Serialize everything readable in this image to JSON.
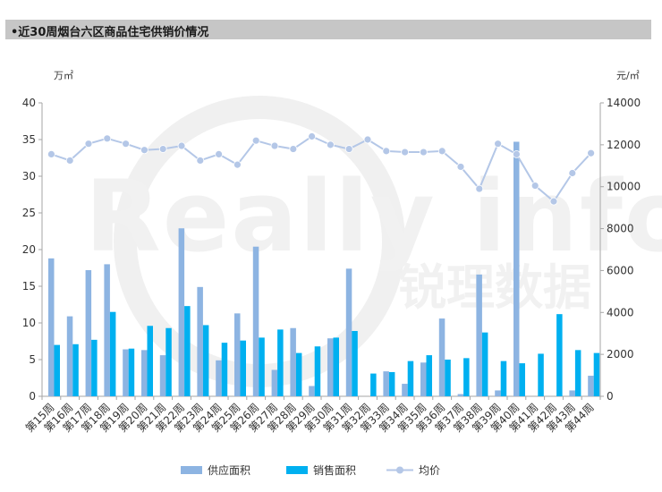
{
  "title": "•近30周烟台六区商品住宅供销价情况",
  "watermark": {
    "text_en": "Really info",
    "text_cn": "锐理数据"
  },
  "colors": {
    "supply": "#8db4e2",
    "sales": "#00b0f0",
    "price_line": "#b4c7e7",
    "price_marker": "#b4c7e7",
    "axis": "#a6a6a6"
  },
  "chart_data": {
    "type": "bar",
    "title": "近30周烟台六区商品住宅供销价情况",
    "categories": [
      "第15周",
      "第16周",
      "第17周",
      "第18周",
      "第19周",
      "第20周",
      "第21周",
      "第22周",
      "第23周",
      "第24周",
      "第25周",
      "第26周",
      "第27周",
      "第28周",
      "第29周",
      "第30周",
      "第31周",
      "第32周",
      "第33周",
      "第34周",
      "第35周",
      "第36周",
      "第37周",
      "第38周",
      "第39周",
      "第40周",
      "第41周",
      "第42周",
      "第43周",
      "第44周"
    ],
    "series": [
      {
        "name": "供应面积",
        "type": "bar",
        "axis": "left",
        "values": [
          18.8,
          10.9,
          17.2,
          18.0,
          6.4,
          6.3,
          5.6,
          22.9,
          14.9,
          4.9,
          11.3,
          20.4,
          3.6,
          9.3,
          1.4,
          7.9,
          17.4,
          0,
          3.4,
          1.7,
          4.6,
          10.6,
          0.3,
          16.6,
          0.8,
          34.7,
          0,
          0,
          0.8,
          2.8
        ]
      },
      {
        "name": "销售面积",
        "type": "bar",
        "axis": "left",
        "values": [
          7.0,
          7.1,
          7.7,
          11.5,
          6.5,
          9.6,
          9.3,
          12.3,
          9.7,
          7.3,
          7.6,
          8.0,
          9.1,
          5.9,
          6.8,
          8.0,
          8.9,
          3.1,
          3.3,
          4.8,
          5.6,
          5.0,
          5.2,
          8.7,
          4.8,
          4.5,
          5.8,
          11.2,
          6.3,
          5.9
        ]
      },
      {
        "name": "均价",
        "type": "line",
        "axis": "right",
        "values": [
          11550,
          11250,
          12050,
          12300,
          12050,
          11750,
          11800,
          11950,
          11250,
          11550,
          11050,
          12200,
          11950,
          11800,
          12400,
          12000,
          11800,
          12250,
          11700,
          11650,
          11650,
          11700,
          10950,
          9900,
          12050,
          11550,
          10050,
          9300,
          10650,
          11600
        ]
      }
    ],
    "y_left": {
      "unit": "万㎡",
      "min": 0,
      "max": 40,
      "ticks": [
        0,
        5,
        10,
        15,
        20,
        25,
        30,
        35,
        40
      ]
    },
    "y_right": {
      "unit": "元/㎡",
      "min": 0,
      "max": 14000,
      "ticks": [
        0,
        2000,
        4000,
        6000,
        8000,
        10000,
        12000,
        14000
      ]
    },
    "grid": false,
    "legend": {
      "placement": "bottom",
      "entries": [
        "供应面积",
        "销售面积",
        "均价"
      ]
    }
  }
}
